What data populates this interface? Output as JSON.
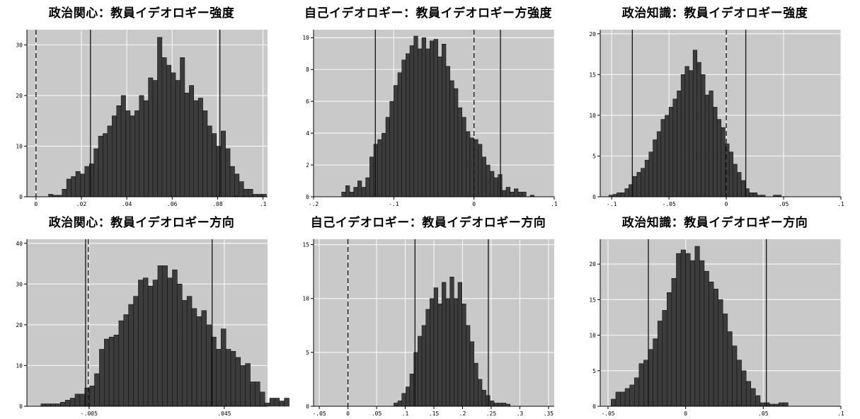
{
  "colors": {
    "plot_background": "#c9c9c9",
    "grid": "#f4f4f4",
    "bar_fill": "#3c3c3c",
    "bar_stroke": "#0a0a0a",
    "reference_line": "#111111"
  },
  "chart_data": [
    {
      "type": "bar",
      "title": "政治関心：教員イデオロギー強度",
      "xlim": [
        -0.004,
        0.102
      ],
      "ylim": [
        0,
        33
      ],
      "xticks": [
        0,
        0.02,
        0.04,
        0.06,
        0.08,
        0.1
      ],
      "xtick_labels": [
        "0",
        ".02",
        ".04",
        ".06",
        ".08",
        ".1"
      ],
      "yticks": [
        0,
        10,
        20,
        30
      ],
      "ytick_labels": [
        "0",
        "10",
        "20",
        "30"
      ],
      "bin_start": 0.0055,
      "bin_width": 0.002,
      "values": [
        0.5,
        0.3,
        0.3,
        1.5,
        3.5,
        4.0,
        5.0,
        4.5,
        6.0,
        6.5,
        9.5,
        12.0,
        12.5,
        14.0,
        16.0,
        18.0,
        20.0,
        17.0,
        16.0,
        17.0,
        20.0,
        19.0,
        23.5,
        23.0,
        31.5,
        27.5,
        26.0,
        24.5,
        23.0,
        27.5,
        20.5,
        22.0,
        19.0,
        19.5,
        17.0,
        14.0,
        12.5,
        10.0,
        13.0,
        9.5,
        6.0,
        4.5,
        3.0,
        1.5,
        1.5,
        0.5,
        0.5,
        0.5
      ],
      "solid_lines": [
        0.024,
        0.081
      ],
      "dashed_lines": [
        0.0
      ],
      "dashed_baseline": [
        0.087,
        0.1
      ]
    },
    {
      "type": "bar",
      "title": "自己イデオロギー：教員イデオロギー方強度",
      "xlim": [
        -0.2,
        0.1
      ],
      "ylim": [
        0,
        10.5
      ],
      "xticks": [
        -0.2,
        -0.1,
        0,
        0.1
      ],
      "xtick_labels": [
        "-.2",
        "-.1",
        "0",
        ".1"
      ],
      "yticks": [
        0,
        2,
        4,
        6,
        8,
        10
      ],
      "ytick_labels": [
        "0",
        "2",
        "4",
        "6",
        "8",
        "10"
      ],
      "bin_start": -0.165,
      "bin_width": 0.005,
      "values": [
        0.3,
        0.7,
        0.3,
        0.6,
        1.0,
        0.6,
        1.2,
        2.5,
        3.3,
        3.6,
        4.0,
        5.0,
        6.0,
        7.0,
        7.8,
        8.6,
        9.0,
        9.5,
        10.1,
        9.3,
        10.0,
        9.3,
        9.8,
        9.9,
        8.8,
        9.6,
        8.2,
        7.3,
        6.8,
        5.6,
        5.0,
        4.1,
        3.7,
        3.6,
        3.3,
        2.5,
        2.0,
        1.6,
        1.2,
        1.4,
        0.4,
        0.6,
        0.3,
        0.5,
        0.3,
        0.3,
        0.0,
        0.1
      ],
      "solid_lines": [
        -0.123,
        0.033
      ],
      "dashed_lines": [
        0.0
      ]
    },
    {
      "type": "bar",
      "title": "政治知識：教員イデオロギー強度",
      "xlim": [
        -0.11,
        0.1
      ],
      "ylim": [
        0,
        20.5
      ],
      "xticks": [
        -0.1,
        -0.05,
        0,
        0.05,
        0.1
      ],
      "xtick_labels": [
        "-.1",
        "-.05",
        "0",
        ".05",
        ".1"
      ],
      "yticks": [
        0,
        5,
        10,
        15,
        20
      ],
      "ytick_labels": [
        "0",
        "5",
        "10",
        "15",
        "20"
      ],
      "bin_start": -0.1025,
      "bin_width": 0.0035,
      "values": [
        0.2,
        0.3,
        0.5,
        0.5,
        1.0,
        1.5,
        2.5,
        3.0,
        3.5,
        4.5,
        5.5,
        7.0,
        8.0,
        9.5,
        10.0,
        11.0,
        12.0,
        13.0,
        15.0,
        16.0,
        15.5,
        18.0,
        16.5,
        15.0,
        12.5,
        13.0,
        11.0,
        9.5,
        8.5,
        6.5,
        5.5,
        4.0,
        3.0,
        2.0,
        1.0,
        0.5,
        0.5,
        0.2,
        0.2,
        0.0,
        0.0,
        0.2,
        0.2
      ],
      "solid_lines": [
        -0.082,
        0.017
      ],
      "dashed_lines": [
        0.0
      ]
    },
    {
      "type": "bar",
      "title": "政治関心：教員イデオロギー方向",
      "xlim": [
        -0.028,
        0.061
      ],
      "ylim": [
        0,
        41
      ],
      "xticks": [
        -0.005,
        0.045
      ],
      "xtick_labels": [
        "-.005",
        ".045"
      ],
      "yticks": [
        0,
        10,
        20,
        30,
        40
      ],
      "ytick_labels": [
        "0",
        "10",
        "20",
        "30",
        "40"
      ],
      "bin_start": -0.0228,
      "bin_width": 0.0018,
      "values": [
        0.6,
        0.6,
        0.6,
        0.6,
        1.0,
        1.5,
        2.0,
        3.0,
        3.0,
        4.5,
        5.0,
        8.0,
        14.0,
        16.5,
        17.0,
        17.5,
        21.0,
        22.5,
        25.0,
        27.0,
        31.0,
        31.5,
        29.5,
        31.0,
        34.5,
        34.5,
        31.5,
        33.5,
        30.0,
        26.0,
        27.0,
        24.0,
        22.0,
        23.5,
        20.0,
        17.0,
        14.0,
        19.0,
        14.0,
        13.5,
        12.0,
        10.0,
        10.5,
        6.0,
        6.0,
        3.5,
        0.8,
        2.0,
        2.0,
        1.3,
        2.0
      ],
      "solid_lines": [
        -0.0063,
        0.0405
      ],
      "dashed_lines": [
        -0.0053
      ]
    },
    {
      "type": "bar",
      "title": "自己イデオロギー：教員イデオロギー方向",
      "xlim": [
        -0.06,
        0.36
      ],
      "ylim": [
        0,
        15.5
      ],
      "xticks": [
        -0.05,
        0,
        0.05,
        0.1,
        0.15,
        0.2,
        0.25,
        0.3,
        0.35
      ],
      "xtick_labels": [
        "-.05",
        "0",
        ".05",
        ".1",
        ".15",
        ".2",
        ".25",
        ".3",
        ".35"
      ],
      "yticks": [
        0,
        5,
        10,
        15
      ],
      "ytick_labels": [
        "0",
        "5",
        "10",
        "15"
      ],
      "bin_start": 0.08,
      "bin_width": 0.007,
      "values": [
        0.3,
        0.5,
        1.2,
        1.8,
        3.0,
        5.0,
        6.5,
        7.5,
        9.0,
        10.0,
        11.0,
        9.5,
        11.5,
        10.0,
        12.0,
        10.0,
        11.5,
        9.5,
        7.5,
        6.0,
        4.0,
        2.5,
        1.5,
        1.0,
        0.5,
        0.3,
        0.3,
        0.3,
        0.2
      ],
      "solid_lines": [
        0.117,
        0.245
      ],
      "dashed_lines": [
        0.0
      ]
    },
    {
      "type": "bar",
      "title": "政治知識：教員イデオロギー方向",
      "xlim": [
        -0.055,
        0.1
      ],
      "ylim": [
        0,
        23.5
      ],
      "xticks": [
        -0.05,
        0,
        0.05,
        0.1
      ],
      "xtick_labels": [
        "-.05",
        "0",
        ".05",
        ".1"
      ],
      "yticks": [
        0,
        5,
        10,
        15,
        20
      ],
      "ytick_labels": [
        "0",
        "5",
        "10",
        "15",
        "20"
      ],
      "bin_start": -0.048,
      "bin_width": 0.003,
      "values": [
        1.0,
        2.0,
        2.0,
        2.5,
        3.0,
        4.0,
        6.0,
        6.5,
        8.0,
        9.5,
        12.0,
        13.5,
        16.0,
        18.0,
        21.5,
        22.0,
        21.5,
        20.5,
        22.5,
        20.5,
        19.0,
        17.5,
        16.5,
        15.0,
        13.0,
        10.5,
        8.5,
        6.5,
        5.0,
        3.5,
        2.5,
        1.5,
        0.5,
        0.5,
        0.3,
        0.3,
        0.5,
        0.5
      ],
      "solid_lines": [
        -0.024,
        0.052
      ],
      "dashed_lines": []
    }
  ]
}
